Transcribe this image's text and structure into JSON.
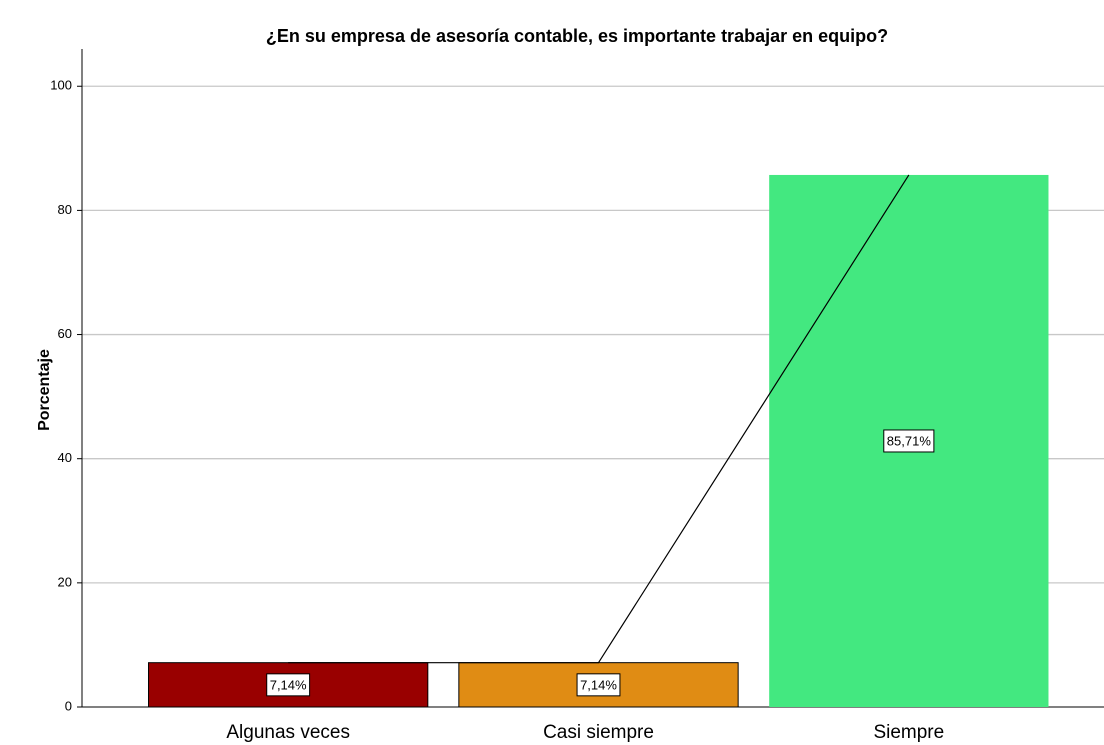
{
  "chart_data": {
    "type": "bar",
    "title": "¿En su empresa de asesoría contable, es importante trabajar en equipo?",
    "ylabel": "Porcentaje",
    "categories": [
      "Algunas veces",
      "Casi siempre",
      "Siempre"
    ],
    "values": [
      7.14,
      7.14,
      85.71
    ],
    "value_labels": [
      "7,14%",
      "7,14%",
      "85,71%"
    ],
    "colors": [
      "#990000",
      "#e08c14",
      "#43e880"
    ],
    "line_color": "#000000",
    "ylim": [
      0,
      106
    ],
    "yticks": [
      0,
      20,
      40,
      60,
      80,
      100
    ],
    "grid": true
  }
}
